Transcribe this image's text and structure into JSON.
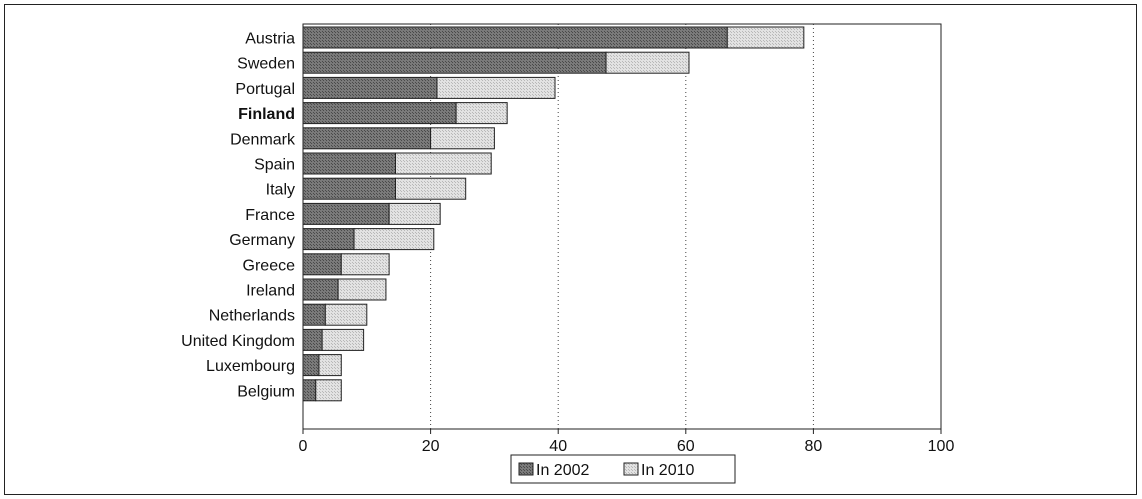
{
  "chart_data": {
    "type": "bar",
    "orientation": "horizontal",
    "stacked": true,
    "categories": [
      "Austria",
      "Sweden",
      "Portugal",
      "Finland",
      "Denmark",
      "Spain",
      "Italy",
      "France",
      "Germany",
      "Greece",
      "Ireland",
      "Netherlands",
      "United Kingdom",
      "Luxembourg",
      "Belgium"
    ],
    "highlight_category": "Finland",
    "series": [
      {
        "name": "In 2002",
        "color": "#6e6e6e",
        "values": [
          66.5,
          47.5,
          21.0,
          24.0,
          20.0,
          14.5,
          14.5,
          13.5,
          8.0,
          6.0,
          5.5,
          3.5,
          3.0,
          2.5,
          2.0
        ]
      },
      {
        "name": "In 2010",
        "color": "#d6d6d6",
        "values": [
          12.0,
          13.0,
          18.5,
          8.0,
          10.0,
          15.0,
          11.0,
          8.0,
          12.5,
          7.5,
          7.5,
          6.5,
          6.5,
          3.5,
          4.0
        ]
      }
    ],
    "xlim": [
      0,
      100
    ],
    "xticks": [
      0,
      20,
      40,
      60,
      80,
      100
    ],
    "gridlines": [
      20,
      40,
      60,
      80
    ],
    "legend_position": "bottom"
  }
}
